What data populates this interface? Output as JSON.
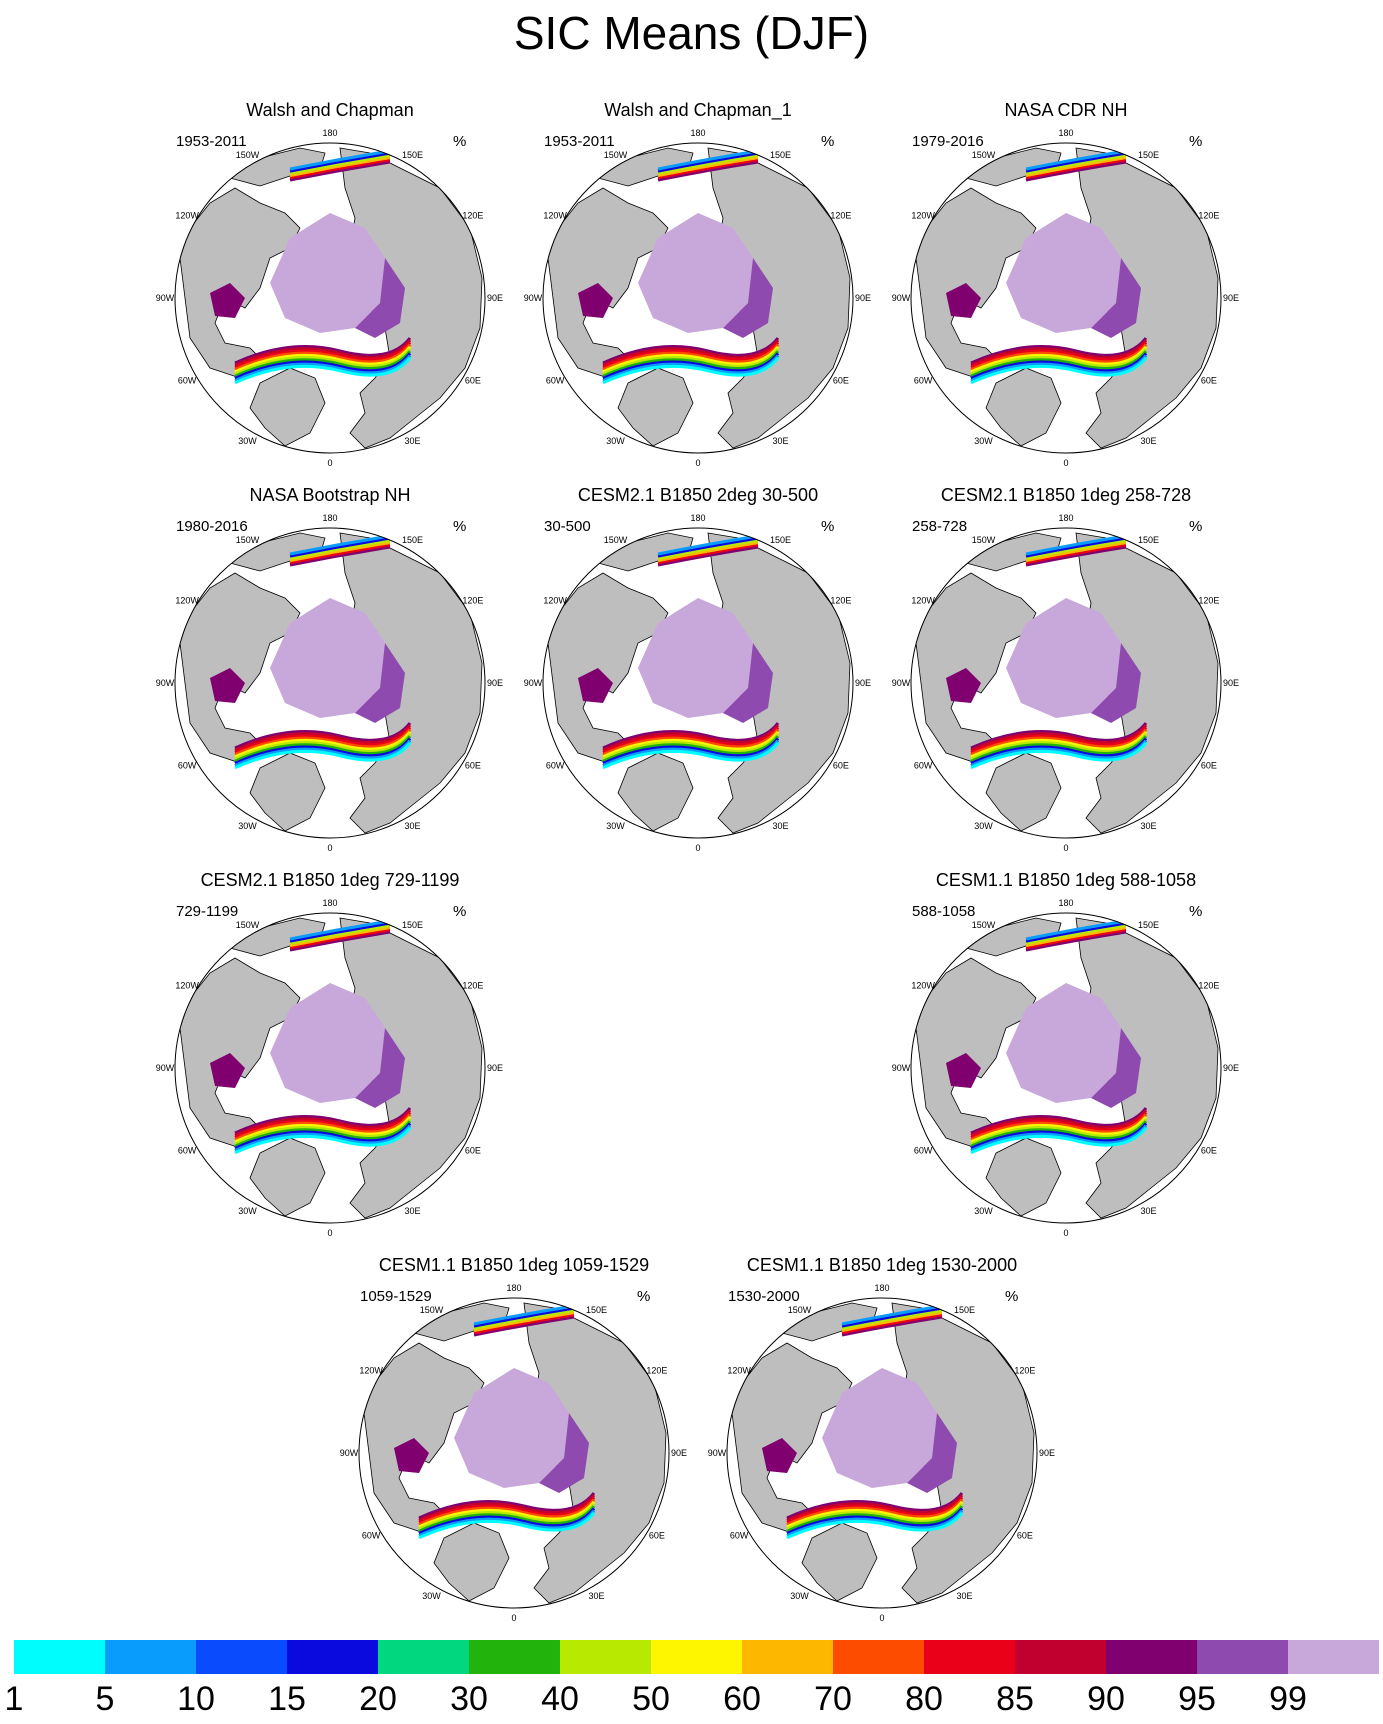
{
  "title": "SIC Means (DJF)",
  "map_labels": {
    "longitude": [
      "180",
      "150E",
      "120E",
      "90E",
      "60E",
      "30E",
      "0",
      "30W",
      "60W",
      "90W",
      "120W",
      "150W"
    ]
  },
  "colors": {
    "land": "#bebebe",
    "ocean": "#ffffff",
    "coast": "#000000"
  },
  "chart_data": {
    "type": "heatmap",
    "units": "%",
    "colorbar": {
      "levels": [
        "1",
        "5",
        "10",
        "15",
        "20",
        "30",
        "40",
        "50",
        "60",
        "70",
        "80",
        "85",
        "90",
        "95",
        "99"
      ],
      "colors": [
        "#00fdfd",
        "#0a9cfd",
        "#0a4bfd",
        "#0a0adf",
        "#00d77f",
        "#22b40d",
        "#b7ea00",
        "#fdf600",
        "#fdb700",
        "#fd4b00",
        "#ea0018",
        "#c1002f",
        "#7f006e",
        "#8f4ab0",
        "#c8a8da"
      ]
    },
    "panels": [
      {
        "title": "Walsh and Chapman",
        "period": "1953-2011",
        "units": "%"
      },
      {
        "title": "Walsh and Chapman_1",
        "period": "1953-2011",
        "units": "%"
      },
      {
        "title": "NASA CDR NH",
        "period": "1979-2016",
        "units": "%"
      },
      {
        "title": "NASA Bootstrap NH",
        "period": "1980-2016",
        "units": "%"
      },
      {
        "title": "CESM2.1 B1850 2deg 30-500",
        "period": "30-500",
        "units": "%"
      },
      {
        "title": "CESM2.1 B1850 1deg 258-728",
        "period": "258-728",
        "units": "%"
      },
      {
        "title": "CESM2.1 B1850 1deg 729-1199",
        "period": "729-1199",
        "units": "%"
      },
      {
        "title": "CESM1.1 B1850 1deg 588-1058",
        "period": "588-1058",
        "units": "%"
      },
      {
        "title": "CESM1.1 B1850 1deg 1059-1529",
        "period": "1059-1529",
        "units": "%"
      },
      {
        "title": "CESM1.1 B1850 1deg 1530-2000",
        "period": "1530-2000",
        "units": "%"
      }
    ]
  }
}
